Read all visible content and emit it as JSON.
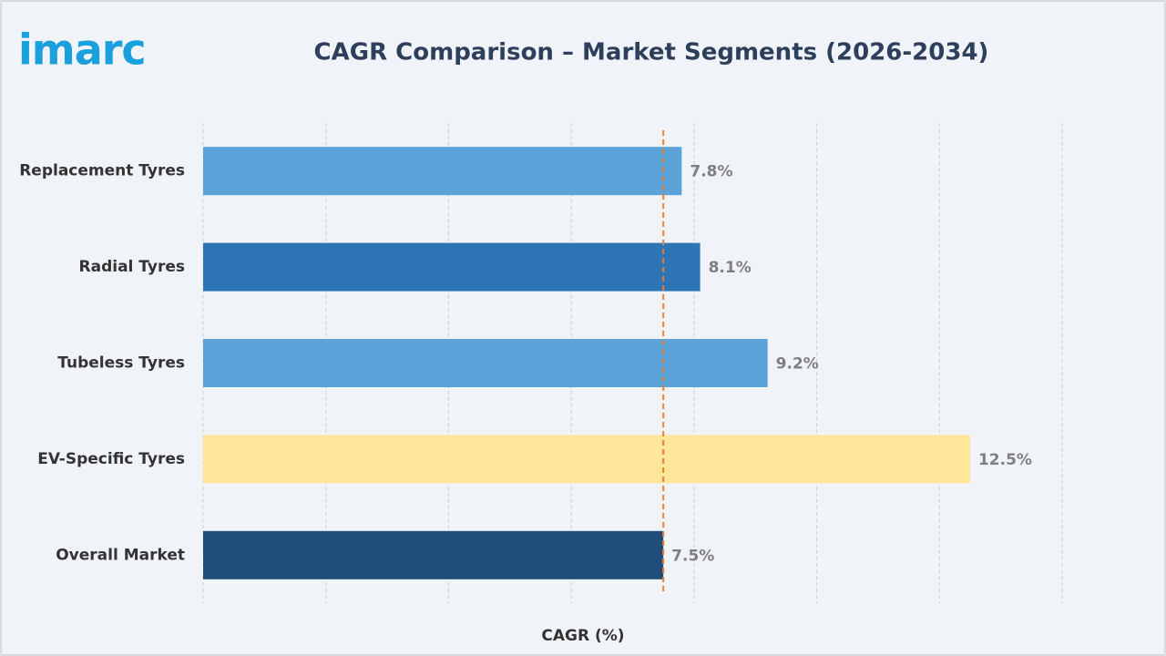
{
  "chart_data": {
    "type": "barh",
    "logo": "imarc",
    "title": "CAGR Comparison – Market Segments (2026-2034)",
    "categories": [
      "Replacement Tyres",
      "Radial Tyres",
      "Tubeless Tyres",
      "EV-Specific Tyres",
      "Overall Market"
    ],
    "values": [
      7.8,
      8.1,
      9.2,
      12.5,
      7.5
    ],
    "value_labels": [
      "7.8%",
      "8.1%",
      "9.2%",
      "12.5%",
      "7.5%"
    ],
    "colors": [
      "#5ba3d9",
      "#2e75b6",
      "#5ba3d9",
      "#ffe699",
      "#1f4e79"
    ],
    "xlabel": "CAGR (%)",
    "xlim": [
      0,
      14
    ],
    "xticks": [
      0,
      2,
      4,
      6,
      8,
      10,
      12,
      14
    ],
    "show_tick_labels": false,
    "grid": true,
    "reference_line": {
      "value": 7.5,
      "color": "#ed7d31"
    }
  }
}
